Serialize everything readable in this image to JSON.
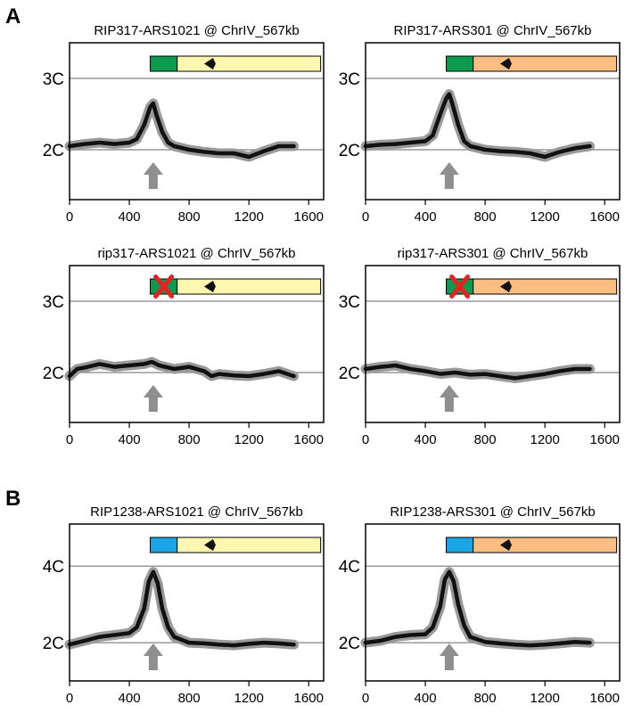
{
  "sections": [
    {
      "label": "A"
    },
    {
      "label": "B"
    }
  ],
  "colors": {
    "frame": "#000000",
    "gridline": "#999999",
    "trace_band": "#9a9a9a",
    "trace_mean": "#111111",
    "arrow": "#8f8f8f",
    "rip317_block": "#0a9b4e",
    "rip1238_block": "#1aa6e6",
    "ars1021_region": "#fff7b0",
    "ars301_region": "#fbbd80",
    "deletion_x": "#e52323"
  },
  "chart_data": [
    {
      "type": "line",
      "title": "RIP317-ARS1021 @ ChrIV_567kb",
      "xlim": [
        0,
        1700
      ],
      "x_ticks": [
        "0",
        "400",
        "800",
        "1200",
        "1600"
      ],
      "y_ticks": [
        {
          "value": 2,
          "label": "2C"
        },
        {
          "value": 3,
          "label": "3C"
        }
      ],
      "ylim": [
        1.3,
        3.5
      ],
      "construct": {
        "block": "rip317",
        "region": "ars1021",
        "deleted": false,
        "block_range": [
          540,
          720
        ],
        "end": 1680,
        "arrowhead_x": 960
      },
      "arrow_x": 560,
      "x": [
        0,
        100,
        200,
        300,
        400,
        450,
        500,
        540,
        560,
        580,
        620,
        660,
        700,
        800,
        900,
        1000,
        1100,
        1200,
        1300,
        1400,
        1500
      ],
      "series": [
        {
          "values": [
            2.05,
            2.08,
            2.1,
            2.08,
            2.1,
            2.15,
            2.35,
            2.6,
            2.65,
            2.5,
            2.25,
            2.1,
            2.05,
            2.0,
            1.97,
            1.95,
            1.95,
            1.9,
            1.98,
            2.05,
            2.05
          ]
        }
      ]
    },
    {
      "type": "line",
      "title": "RIP317-ARS301 @ ChrIV_567kb",
      "xlim": [
        0,
        1700
      ],
      "x_ticks": [
        "0",
        "400",
        "800",
        "1200",
        "1600"
      ],
      "y_ticks": [
        {
          "value": 2,
          "label": "2C"
        },
        {
          "value": 3,
          "label": "3C"
        }
      ],
      "ylim": [
        1.3,
        3.5
      ],
      "construct": {
        "block": "rip317",
        "region": "ars301",
        "deleted": false,
        "block_range": [
          540,
          720
        ],
        "end": 1680,
        "arrowhead_x": 960
      },
      "arrow_x": 560,
      "x": [
        0,
        100,
        200,
        300,
        400,
        450,
        500,
        540,
        560,
        580,
        620,
        660,
        700,
        800,
        900,
        1000,
        1100,
        1200,
        1300,
        1400,
        1500
      ],
      "series": [
        {
          "values": [
            2.05,
            2.07,
            2.08,
            2.1,
            2.12,
            2.2,
            2.5,
            2.72,
            2.78,
            2.65,
            2.35,
            2.12,
            2.05,
            2.0,
            1.98,
            1.97,
            1.95,
            1.9,
            1.97,
            2.02,
            2.05
          ]
        }
      ]
    },
    {
      "type": "line",
      "title": "rip317-ARS1021 @ ChrIV_567kb",
      "xlim": [
        0,
        1700
      ],
      "x_ticks": [
        "0",
        "400",
        "800",
        "1200",
        "1600"
      ],
      "y_ticks": [
        {
          "value": 2,
          "label": "2C"
        },
        {
          "value": 3,
          "label": "3C"
        }
      ],
      "ylim": [
        1.3,
        3.5
      ],
      "construct": {
        "block": "rip317",
        "region": "ars1021",
        "deleted": true,
        "block_range": [
          540,
          720
        ],
        "end": 1680,
        "arrowhead_x": 960
      },
      "arrow_x": 560,
      "x": [
        0,
        50,
        100,
        200,
        300,
        400,
        500,
        550,
        600,
        700,
        800,
        900,
        950,
        1000,
        1100,
        1200,
        1300,
        1400,
        1500
      ],
      "series": [
        {
          "values": [
            1.95,
            2.05,
            2.07,
            2.12,
            2.08,
            2.1,
            2.12,
            2.15,
            2.1,
            2.05,
            2.08,
            2.02,
            1.95,
            1.98,
            1.96,
            1.95,
            1.98,
            2.02,
            1.95
          ]
        }
      ]
    },
    {
      "type": "line",
      "title": "rip317-ARS301 @ ChrIV_567kb",
      "xlim": [
        0,
        1700
      ],
      "x_ticks": [
        "0",
        "400",
        "800",
        "1200",
        "1600"
      ],
      "y_ticks": [
        {
          "value": 2,
          "label": "2C"
        },
        {
          "value": 3,
          "label": "3C"
        }
      ],
      "ylim": [
        1.3,
        3.5
      ],
      "construct": {
        "block": "rip317",
        "region": "ars301",
        "deleted": true,
        "block_range": [
          540,
          720
        ],
        "end": 1680,
        "arrowhead_x": 960
      },
      "arrow_x": 560,
      "x": [
        0,
        100,
        200,
        300,
        400,
        500,
        600,
        700,
        800,
        900,
        1000,
        1100,
        1200,
        1300,
        1400,
        1500
      ],
      "series": [
        {
          "values": [
            2.05,
            2.08,
            2.1,
            2.05,
            2.02,
            1.98,
            2.0,
            1.97,
            1.98,
            1.95,
            1.92,
            1.95,
            1.98,
            2.02,
            2.05,
            2.05
          ]
        }
      ]
    },
    {
      "type": "line",
      "title": "RIP1238-ARS1021 @ ChrIV_567kb",
      "xlim": [
        0,
        1700
      ],
      "x_ticks": [
        "0",
        "400",
        "800",
        "1200",
        "1600"
      ],
      "y_ticks": [
        {
          "value": 2,
          "label": "2C"
        },
        {
          "value": 4,
          "label": "4C"
        }
      ],
      "ylim": [
        1.0,
        5.1
      ],
      "construct": {
        "block": "rip1238",
        "region": "ars1021",
        "deleted": false,
        "block_range": [
          540,
          720
        ],
        "end": 1680,
        "arrowhead_x": 960
      },
      "arrow_x": 560,
      "x": [
        0,
        100,
        200,
        300,
        400,
        450,
        500,
        530,
        560,
        590,
        620,
        660,
        700,
        800,
        900,
        1000,
        1100,
        1200,
        1300,
        1400,
        1500
      ],
      "series": [
        {
          "values": [
            1.95,
            2.05,
            2.15,
            2.2,
            2.25,
            2.4,
            2.9,
            3.6,
            3.85,
            3.55,
            2.9,
            2.4,
            2.15,
            2.0,
            1.98,
            1.95,
            1.93,
            1.97,
            2.0,
            1.98,
            1.95
          ]
        }
      ]
    },
    {
      "type": "line",
      "title": "RIP1238-ARS301 @ ChrIV_567kb",
      "xlim": [
        0,
        1700
      ],
      "x_ticks": [
        "0",
        "400",
        "800",
        "1200",
        "1600"
      ],
      "y_ticks": [
        {
          "value": 2,
          "label": "2C"
        },
        {
          "value": 4,
          "label": "4C"
        }
      ],
      "ylim": [
        1.0,
        5.1
      ],
      "construct": {
        "block": "rip1238",
        "region": "ars301",
        "deleted": false,
        "block_range": [
          540,
          720
        ],
        "end": 1680,
        "arrowhead_x": 960
      },
      "arrow_x": 560,
      "x": [
        0,
        100,
        200,
        300,
        400,
        450,
        500,
        530,
        560,
        590,
        620,
        660,
        700,
        800,
        900,
        1000,
        1100,
        1200,
        1300,
        1400,
        1500
      ],
      "series": [
        {
          "values": [
            2.0,
            2.05,
            2.15,
            2.2,
            2.22,
            2.4,
            2.95,
            3.65,
            3.85,
            3.6,
            3.0,
            2.45,
            2.15,
            2.02,
            1.98,
            1.95,
            1.93,
            1.95,
            1.98,
            2.02,
            2.0
          ]
        }
      ]
    }
  ]
}
